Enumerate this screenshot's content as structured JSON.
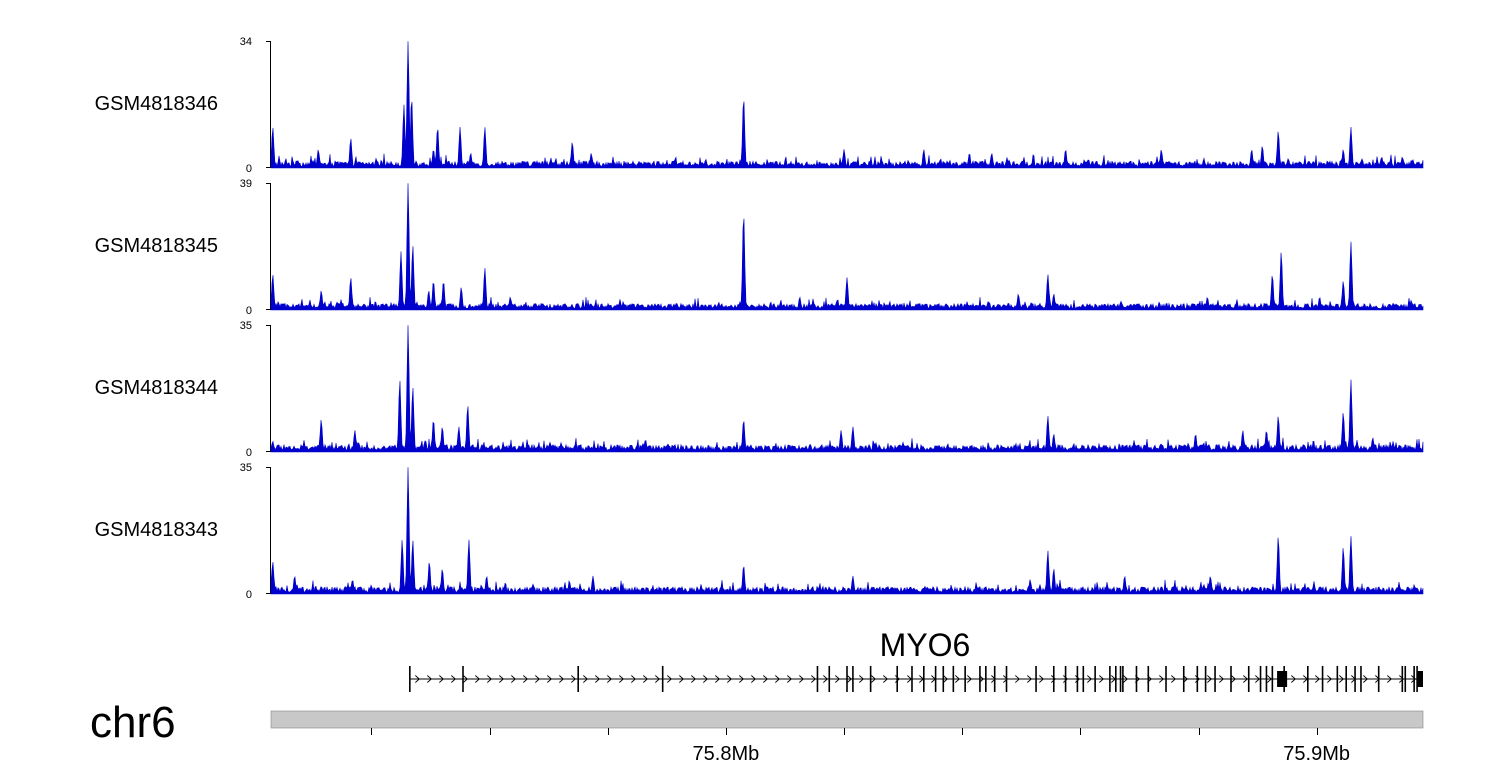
{
  "chart_data": {
    "type": "area",
    "chromosome": "chr6",
    "x_range_mb": [
      75.723,
      75.918
    ],
    "tracks": [
      {
        "name": "GSM4818346",
        "ymin": "0",
        "ymax": "34",
        "ylim": [
          0,
          34
        ],
        "color": "#0000cc",
        "baseline": 1.2,
        "peaks": [
          {
            "x": 75.7233,
            "y": 11
          },
          {
            "x": 75.731,
            "y": 5
          },
          {
            "x": 75.7365,
            "y": 8
          },
          {
            "x": 75.7455,
            "y": 17
          },
          {
            "x": 75.7462,
            "y": 34
          },
          {
            "x": 75.7468,
            "y": 19
          },
          {
            "x": 75.7505,
            "y": 5
          },
          {
            "x": 75.7512,
            "y": 11
          },
          {
            "x": 75.755,
            "y": 11
          },
          {
            "x": 75.7568,
            "y": 4
          },
          {
            "x": 75.7592,
            "y": 11
          },
          {
            "x": 75.774,
            "y": 7
          },
          {
            "x": 75.7772,
            "y": 4
          },
          {
            "x": 75.803,
            "y": 19
          },
          {
            "x": 75.82,
            "y": 5
          },
          {
            "x": 75.8335,
            "y": 5
          },
          {
            "x": 75.845,
            "y": 4
          },
          {
            "x": 75.8575,
            "y": 5
          },
          {
            "x": 75.8737,
            "y": 5
          },
          {
            "x": 75.889,
            "y": 5
          },
          {
            "x": 75.8908,
            "y": 6
          },
          {
            "x": 75.8935,
            "y": 10
          },
          {
            "x": 75.9045,
            "y": 5
          },
          {
            "x": 75.9058,
            "y": 11
          },
          {
            "x": 75.911,
            "y": 3
          },
          {
            "x": 75.9145,
            "y": 3
          }
        ]
      },
      {
        "name": "GSM4818345",
        "ymin": "0",
        "ymax": "39",
        "ylim": [
          0,
          39
        ],
        "color": "#0000cc",
        "baseline": 1.3,
        "peaks": [
          {
            "x": 75.7233,
            "y": 11
          },
          {
            "x": 75.7315,
            "y": 6
          },
          {
            "x": 75.7365,
            "y": 10
          },
          {
            "x": 75.745,
            "y": 18
          },
          {
            "x": 75.7462,
            "y": 39
          },
          {
            "x": 75.747,
            "y": 20
          },
          {
            "x": 75.7497,
            "y": 6
          },
          {
            "x": 75.7505,
            "y": 9
          },
          {
            "x": 75.7522,
            "y": 9
          },
          {
            "x": 75.7552,
            "y": 7
          },
          {
            "x": 75.7592,
            "y": 13
          },
          {
            "x": 75.7635,
            "y": 4
          },
          {
            "x": 75.803,
            "y": 30
          },
          {
            "x": 75.8125,
            "y": 4
          },
          {
            "x": 75.8205,
            "y": 10
          },
          {
            "x": 75.8495,
            "y": 5
          },
          {
            "x": 75.8545,
            "y": 11
          },
          {
            "x": 75.8555,
            "y": 5
          },
          {
            "x": 75.8815,
            "y": 4
          },
          {
            "x": 75.8925,
            "y": 11
          },
          {
            "x": 75.894,
            "y": 18
          },
          {
            "x": 75.9005,
            "y": 4
          },
          {
            "x": 75.9045,
            "y": 9
          },
          {
            "x": 75.9058,
            "y": 21
          },
          {
            "x": 75.916,
            "y": 3
          }
        ]
      },
      {
        "name": "GSM4818344",
        "ymin": "0",
        "ymax": "35",
        "ylim": [
          0,
          35
        ],
        "color": "#0000cc",
        "baseline": 1.3,
        "peaks": [
          {
            "x": 75.7233,
            "y": 3
          },
          {
            "x": 75.7315,
            "y": 9
          },
          {
            "x": 75.7372,
            "y": 6
          },
          {
            "x": 75.7448,
            "y": 20
          },
          {
            "x": 75.7462,
            "y": 35
          },
          {
            "x": 75.747,
            "y": 18
          },
          {
            "x": 75.7505,
            "y": 9
          },
          {
            "x": 75.752,
            "y": 7
          },
          {
            "x": 75.7548,
            "y": 7
          },
          {
            "x": 75.7563,
            "y": 13
          },
          {
            "x": 75.803,
            "y": 9
          },
          {
            "x": 75.8195,
            "y": 6
          },
          {
            "x": 75.8215,
            "y": 7
          },
          {
            "x": 75.8545,
            "y": 10
          },
          {
            "x": 75.8555,
            "y": 5
          },
          {
            "x": 75.8795,
            "y": 5
          },
          {
            "x": 75.8875,
            "y": 6
          },
          {
            "x": 75.8915,
            "y": 6
          },
          {
            "x": 75.8935,
            "y": 10
          },
          {
            "x": 75.9045,
            "y": 11
          },
          {
            "x": 75.9058,
            "y": 20
          },
          {
            "x": 75.9095,
            "y": 4
          },
          {
            "x": 75.914,
            "y": 2
          }
        ]
      },
      {
        "name": "GSM4818343",
        "ymin": "0",
        "ymax": "35",
        "ylim": [
          0,
          35
        ],
        "color": "#0000cc",
        "baseline": 1.3,
        "peaks": [
          {
            "x": 75.7233,
            "y": 9
          },
          {
            "x": 75.727,
            "y": 5
          },
          {
            "x": 75.7368,
            "y": 4
          },
          {
            "x": 75.7452,
            "y": 15
          },
          {
            "x": 75.7462,
            "y": 35
          },
          {
            "x": 75.747,
            "y": 15
          },
          {
            "x": 75.7498,
            "y": 9
          },
          {
            "x": 75.752,
            "y": 7
          },
          {
            "x": 75.7565,
            "y": 15
          },
          {
            "x": 75.7595,
            "y": 5
          },
          {
            "x": 75.7775,
            "y": 5
          },
          {
            "x": 75.803,
            "y": 8
          },
          {
            "x": 75.8215,
            "y": 5
          },
          {
            "x": 75.8515,
            "y": 4
          },
          {
            "x": 75.8545,
            "y": 12
          },
          {
            "x": 75.8555,
            "y": 7
          },
          {
            "x": 75.8675,
            "y": 5
          },
          {
            "x": 75.882,
            "y": 5
          },
          {
            "x": 75.8935,
            "y": 16
          },
          {
            "x": 75.9045,
            "y": 13
          },
          {
            "x": 75.9058,
            "y": 16
          },
          {
            "x": 75.9155,
            "y": 2
          }
        ]
      }
    ],
    "gene": {
      "name": "MYO6",
      "start": 75.7465,
      "end": 75.918,
      "strand": "+",
      "exons": [
        75.7465,
        75.7555,
        75.775,
        75.7893,
        75.8155,
        75.8175,
        75.8205,
        75.8215,
        75.8245,
        75.829,
        75.8315,
        75.8335,
        75.8355,
        75.8368,
        75.8385,
        75.8405,
        75.843,
        75.844,
        75.8455,
        75.8475,
        75.8525,
        75.8555,
        75.8575,
        75.8595,
        75.8605,
        75.8625,
        75.865,
        75.866,
        75.8668,
        75.8672,
        75.8695,
        75.8715,
        75.8745,
        75.8775,
        75.8798,
        75.8812,
        75.8828,
        75.8855,
        75.8885,
        75.8905,
        75.8915,
        75.8925,
        75.8945,
        75.8985,
        75.901,
        75.9035,
        75.905,
        75.9065,
        75.9075,
        75.9105,
        75.9145,
        75.915,
        75.9165,
        75.917
      ],
      "thick_blocks": [
        [
          75.8933,
          75.895
        ],
        [
          75.917,
          75.918
        ]
      ]
    },
    "axis": {
      "ticks_mb": [
        75.74,
        75.76,
        75.78,
        75.8,
        75.82,
        75.84,
        75.86,
        75.88,
        75.9
      ],
      "labels": [
        {
          "value": 75.8,
          "text": "75.8Mb"
        },
        {
          "value": 75.9,
          "text": "75.9Mb"
        }
      ]
    }
  }
}
